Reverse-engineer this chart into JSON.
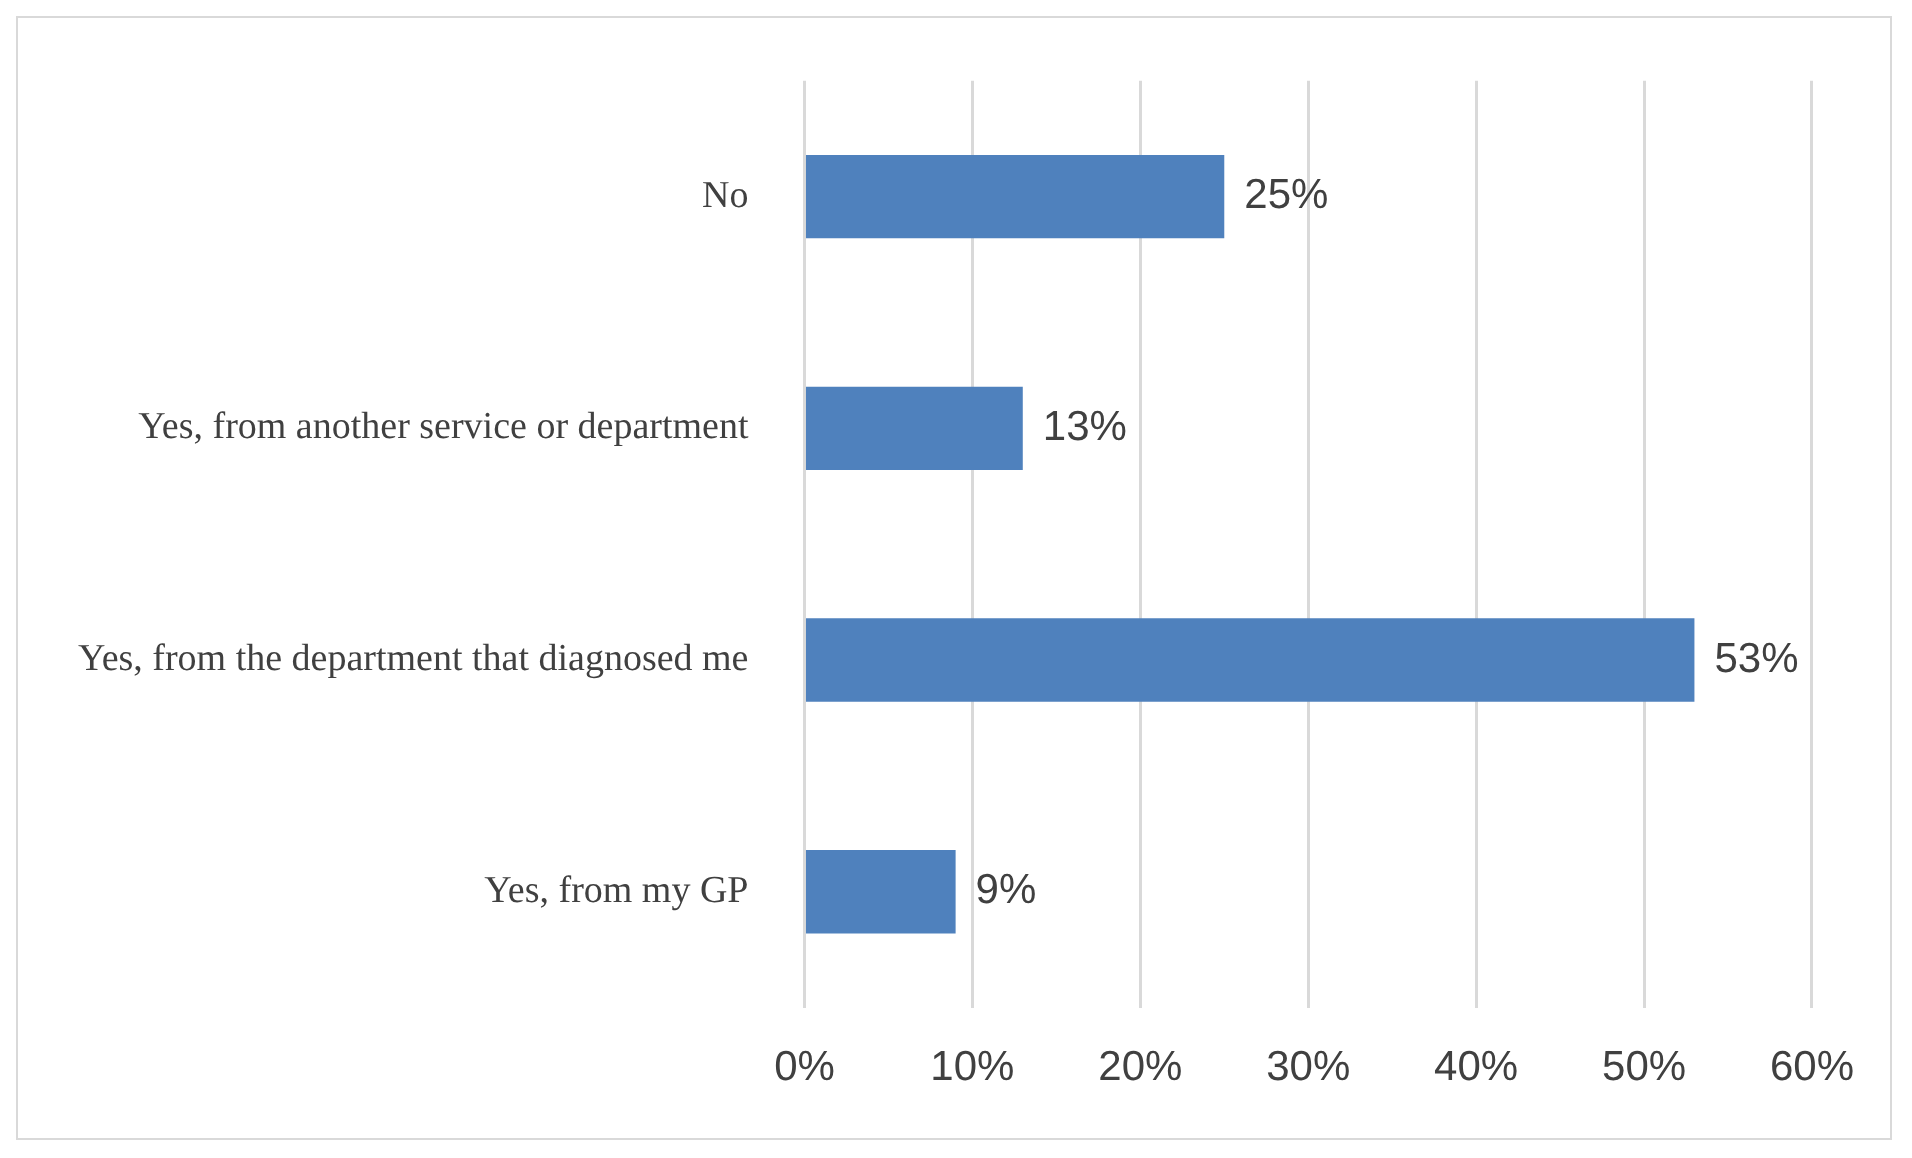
{
  "chart_data": {
    "type": "bar",
    "orientation": "horizontal",
    "categories": [
      "No",
      "Yes, from another service or department",
      "Yes, from the department that diagnosed me",
      "Yes, from my GP"
    ],
    "values": [
      25,
      13,
      53,
      9
    ],
    "value_labels": [
      "25%",
      "13%",
      "53%",
      "9%"
    ],
    "color": "#4f81bd",
    "xlim": [
      0,
      60
    ],
    "xticks": [
      {
        "value": 0,
        "label": "0%"
      },
      {
        "value": 10,
        "label": "10%"
      },
      {
        "value": 20,
        "label": "20%"
      },
      {
        "value": 30,
        "label": "30%"
      },
      {
        "value": 40,
        "label": "40%"
      },
      {
        "value": 50,
        "label": "50%"
      },
      {
        "value": 60,
        "label": "60%"
      }
    ],
    "grid": "x",
    "legend": false
  }
}
